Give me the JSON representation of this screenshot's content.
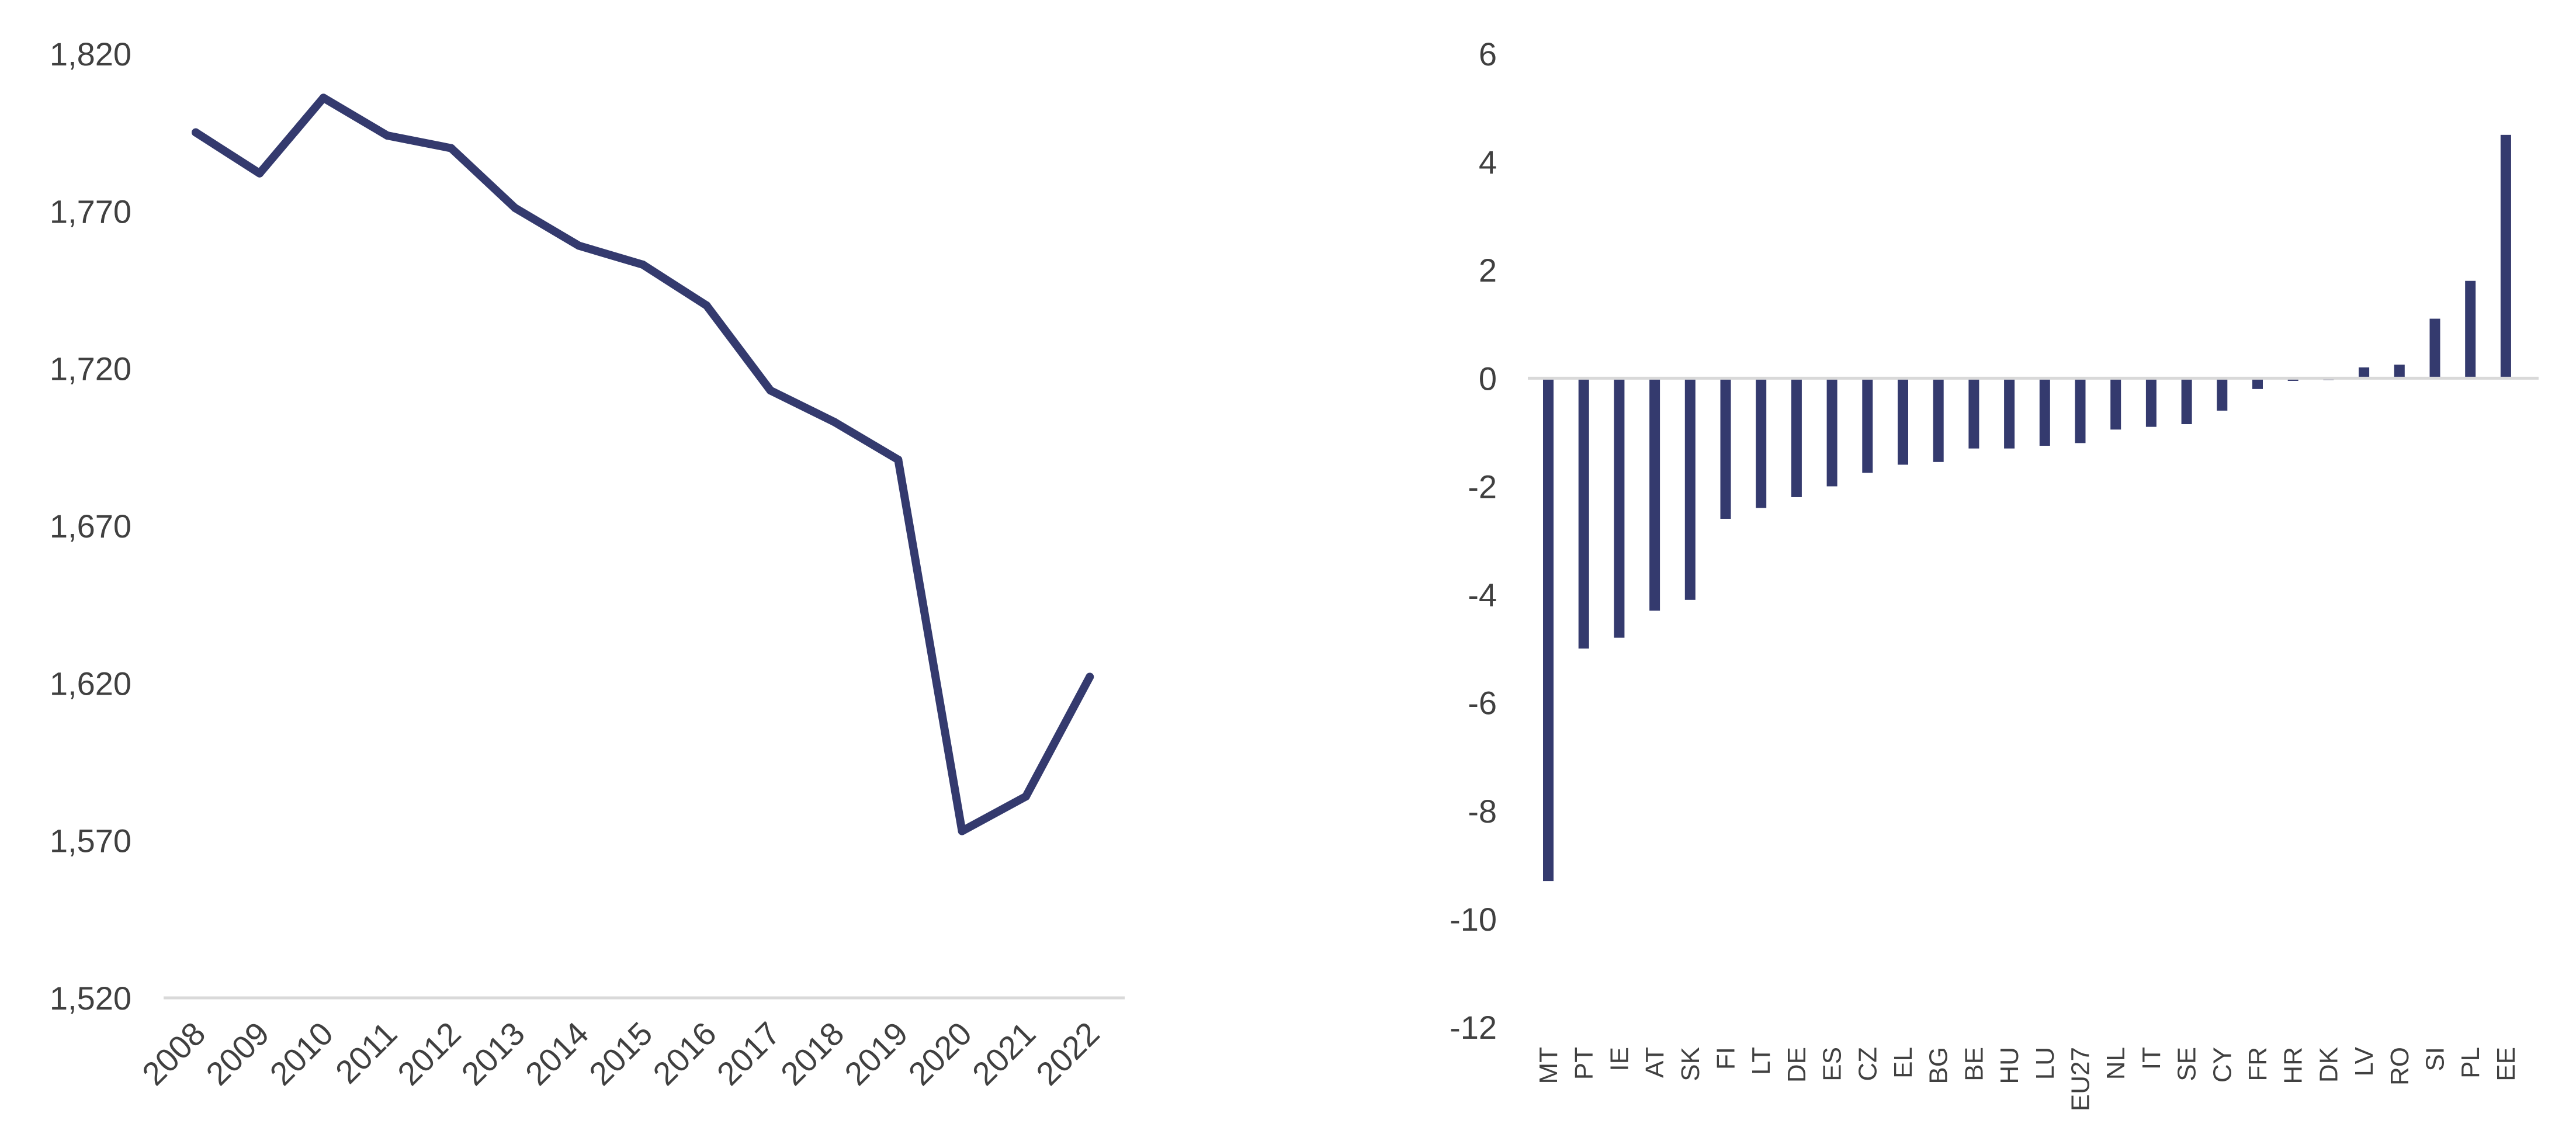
{
  "chart_data": [
    {
      "type": "line",
      "title": "",
      "xlabel": "",
      "ylabel": "",
      "x": [
        "2008",
        "2009",
        "2010",
        "2011",
        "2012",
        "2013",
        "2014",
        "2015",
        "2016",
        "2017",
        "2018",
        "2019",
        "2020",
        "2021",
        "2022"
      ],
      "series": [
        {
          "values": [
            1795,
            1782,
            1806,
            1794,
            1790,
            1771,
            1759,
            1753,
            1740,
            1713,
            1703,
            1691,
            1573,
            1584,
            1622
          ]
        }
      ],
      "yticks": [
        "1,520",
        "1,570",
        "1,620",
        "1,670",
        "1,720",
        "1,770",
        "1,820"
      ],
      "ylim": [
        1520,
        1820
      ],
      "grid": false,
      "legend": "none",
      "colors": {
        "series": "#343a6e",
        "axis": "#d9d9d9",
        "text": "#404040"
      }
    },
    {
      "type": "bar",
      "title": "",
      "xlabel": "",
      "ylabel": "",
      "categories": [
        "MT",
        "PT",
        "IE",
        "AT",
        "SK",
        "FI",
        "LT",
        "DE",
        "ES",
        "CZ",
        "EL",
        "BG",
        "BE",
        "HU",
        "LU",
        "EU27",
        "NL",
        "IT",
        "SE",
        "CY",
        "FR",
        "HR",
        "DK",
        "LV",
        "RO",
        "SI",
        "PL",
        "EE"
      ],
      "values": [
        -9.3,
        -5.0,
        -4.8,
        -4.3,
        -4.1,
        -2.6,
        -2.4,
        -2.2,
        -2.0,
        -1.75,
        -1.6,
        -1.55,
        -1.3,
        -1.3,
        -1.25,
        -1.2,
        -0.95,
        -0.9,
        -0.85,
        -0.6,
        -0.2,
        -0.05,
        0.0,
        0.2,
        0.25,
        1.1,
        1.8,
        4.5
      ],
      "yticks": [
        "-12",
        "-10",
        "-8",
        "-6",
        "-4",
        "-2",
        "0",
        "2",
        "4",
        "6"
      ],
      "ylim": [
        -12,
        6
      ],
      "grid": false,
      "legend": "none",
      "colors": {
        "series": "#343a6e",
        "axis": "#d9d9d9",
        "text": "#404040"
      }
    }
  ]
}
